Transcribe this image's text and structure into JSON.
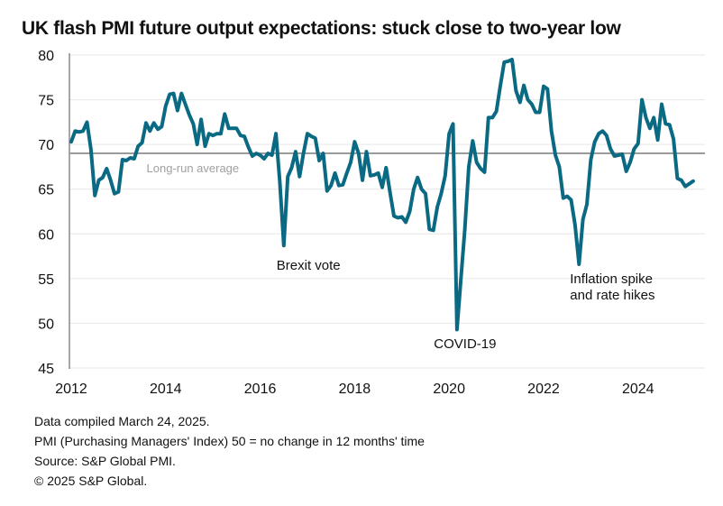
{
  "chart_data": {
    "type": "line",
    "title": "UK flash PMI future output expectations: stuck close to two-year low",
    "xlabel": "",
    "ylabel": "",
    "ylim": [
      45,
      80
    ],
    "yticks": [
      45,
      50,
      55,
      60,
      65,
      70,
      75,
      80
    ],
    "xlim": [
      "2012-01",
      "2025-06"
    ],
    "xticks": [
      "2012",
      "2014",
      "2016",
      "2018",
      "2020",
      "2022",
      "2024"
    ],
    "grid": "horizontal",
    "x_start": "2012-01",
    "x_frequency": "monthly",
    "series": [
      {
        "name": "UK flash PMI future output expectations",
        "color": "#0b6a83",
        "values": [
          70.3,
          71.5,
          71.4,
          71.5,
          72.5,
          69.5,
          64.3,
          66.0,
          66.3,
          67.3,
          66.0,
          64.5,
          64.7,
          68.3,
          68.2,
          68.5,
          68.4,
          69.8,
          70.2,
          72.4,
          71.5,
          72.4,
          71.7,
          72.0,
          74.3,
          75.6,
          75.7,
          73.8,
          75.7,
          74.5,
          73.3,
          72.3,
          70.0,
          72.8,
          69.8,
          71.2,
          71.0,
          71.2,
          71.2,
          73.4,
          71.8,
          71.8,
          71.8,
          71.0,
          70.9,
          69.7,
          68.7,
          69.0,
          68.8,
          68.4,
          69.0,
          68.8,
          71.2,
          65.8,
          58.7,
          66.4,
          67.4,
          69.2,
          66.4,
          69.0,
          71.2,
          70.9,
          70.7,
          68.2,
          69.0,
          64.8,
          65.4,
          66.8,
          65.4,
          65.5,
          66.8,
          68.0,
          70.3,
          69.0,
          66.0,
          69.2,
          66.5,
          66.6,
          66.8,
          65.2,
          67.4,
          64.6,
          62.0,
          61.8,
          61.9,
          61.3,
          62.5,
          65.0,
          66.3,
          65.0,
          64.5,
          60.5,
          60.4,
          63.0,
          64.5,
          66.5,
          71.2,
          72.3,
          49.3,
          55.0,
          60.5,
          67.5,
          70.4,
          68.0,
          67.3,
          66.9,
          73.0,
          73.0,
          73.7,
          76.5,
          79.2,
          79.3,
          79.5,
          76.0,
          74.7,
          76.6,
          75.0,
          74.5,
          73.6,
          73.6,
          76.5,
          76.2,
          71.5,
          68.8,
          67.5,
          64.0,
          64.2,
          63.8,
          61.0,
          56.6,
          61.6,
          63.3,
          68.3,
          70.3,
          71.2,
          71.5,
          71.0,
          69.5,
          68.7,
          68.8,
          68.9,
          67.0,
          68.0,
          69.5,
          70.1,
          75.0,
          73.0,
          71.8,
          73.0,
          70.5,
          74.5,
          72.3,
          72.2,
          70.6,
          66.2,
          66.0,
          65.3,
          65.6,
          65.9
        ]
      },
      {
        "name": "Long-run average",
        "color": "#9b9b9b",
        "values": [
          69.0
        ]
      }
    ],
    "annotations": [
      {
        "text": "Long-run average",
        "x": "2014-03",
        "y": 69.0
      },
      {
        "text": "Brexit vote",
        "x": "2016-07",
        "y": 58.7
      },
      {
        "text": "COVID-19",
        "x": "2020-04",
        "y": 49.3
      },
      {
        "text": "Inflation spike",
        "x": "2022-10",
        "y": 56.6
      },
      {
        "text": "and rate hikes",
        "x": "2022-10",
        "y": 56.6
      }
    ]
  },
  "footer": {
    "line1": "Data compiled March 24, 2025.",
    "line2": "PMI (Purchasing Managers' Index) 50 = no change in 12 months' time",
    "line3": "Source: S&P Global PMI.",
    "line4": "© 2025 S&P Global."
  }
}
